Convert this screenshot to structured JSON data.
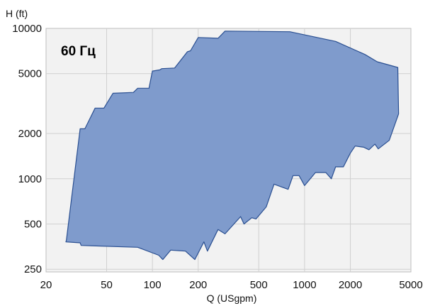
{
  "chart_data": {
    "type": "area",
    "title": "",
    "annotation": "60 Гц",
    "xlabel": "Q (USgpm)",
    "ylabel": "H (ft)",
    "xscale": "log",
    "yscale": "log",
    "xlim": [
      20,
      5000
    ],
    "ylim": [
      240,
      10000
    ],
    "xticks": [
      "20",
      "50",
      "100",
      "200",
      "500",
      "1000",
      "2000",
      "5000"
    ],
    "yticks": [
      "250",
      "500",
      "1000",
      "2000",
      "5000",
      "10000"
    ],
    "grid": true,
    "fill_color": "#7f9bcc",
    "line_color": "#2a4f91",
    "series": [
      {
        "values": [
          [
            27,
            380
          ],
          [
            27.2,
            390
          ],
          [
            33.5,
            2150
          ],
          [
            36,
            2150
          ],
          [
            42,
            2950
          ],
          [
            48,
            2950
          ],
          [
            55,
            3700
          ],
          [
            75,
            3750
          ],
          [
            80,
            4000
          ],
          [
            95,
            4000
          ],
          [
            100,
            5200
          ],
          [
            112,
            5300
          ],
          [
            115,
            5400
          ],
          [
            140,
            5450
          ],
          [
            170,
            7000
          ],
          [
            178,
            7100
          ],
          [
            200,
            8700
          ],
          [
            270,
            8600
          ],
          [
            300,
            9600
          ],
          [
            800,
            9500
          ],
          [
            1600,
            8200
          ],
          [
            2500,
            6700
          ],
          [
            3000,
            6000
          ],
          [
            4100,
            5500
          ],
          [
            4150,
            2700
          ],
          [
            3600,
            1800
          ],
          [
            3050,
            1580
          ],
          [
            2900,
            1700
          ],
          [
            2650,
            1560
          ],
          [
            2450,
            1620
          ],
          [
            2150,
            1650
          ],
          [
            2000,
            1480
          ],
          [
            1800,
            1200
          ],
          [
            1600,
            1200
          ],
          [
            1500,
            1000
          ],
          [
            1380,
            1100
          ],
          [
            1180,
            1100
          ],
          [
            1000,
            900
          ],
          [
            920,
            1050
          ],
          [
            840,
            1050
          ],
          [
            780,
            850
          ],
          [
            630,
            920
          ],
          [
            560,
            650
          ],
          [
            480,
            540
          ],
          [
            450,
            550
          ],
          [
            400,
            500
          ],
          [
            380,
            560
          ],
          [
            300,
            430
          ],
          [
            270,
            460
          ],
          [
            230,
            330
          ],
          [
            218,
            380
          ],
          [
            190,
            290
          ],
          [
            165,
            330
          ],
          [
            132,
            335
          ],
          [
            117,
            290
          ],
          [
            110,
            310
          ],
          [
            80,
            350
          ],
          [
            34,
            360
          ],
          [
            33.5,
            375
          ],
          [
            27,
            380
          ]
        ]
      }
    ]
  }
}
